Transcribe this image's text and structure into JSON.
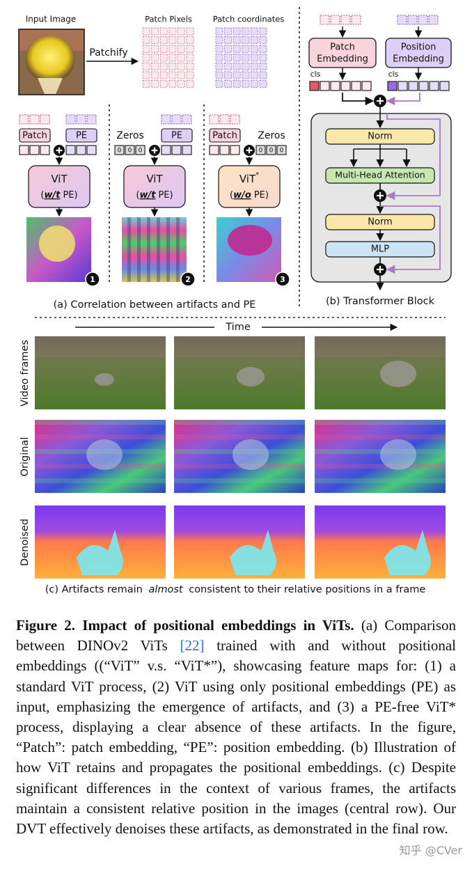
{
  "panel_a": {
    "input_image": "Input Image",
    "patchify": "Patchify",
    "patch_pixels": "Patch Pixels",
    "patch_coordinates": "Patch coordinates",
    "variants": [
      {
        "input_left": "Patch",
        "input_right": "PE",
        "model": "ViT",
        "note_open": "(",
        "note_em": "w/t",
        "note_close": "PE)",
        "badge": "1"
      },
      {
        "input_left": "Zeros",
        "input_right": "PE",
        "zeros": [
          "0",
          "0",
          "0"
        ],
        "model": "ViT",
        "note_open": "(",
        "note_em": "w/t",
        "note_close": "PE)",
        "badge": "2"
      },
      {
        "input_left": "Patch",
        "input_right": "Zeros",
        "zeros": [
          "0",
          "0",
          "0"
        ],
        "model": "ViT",
        "model_sup": "*",
        "note_open": "(",
        "note_em": "w/o",
        "note_close": "PE)",
        "badge": "3"
      }
    ],
    "caption": "(a) Correlation between artifacts and PE"
  },
  "panel_b": {
    "patch_embedding": [
      "Patch",
      "Embedding"
    ],
    "position_embedding": [
      "Position",
      "Embedding"
    ],
    "cls_left": "cls",
    "cls_right": "cls",
    "norm_1": "Norm",
    "attention": "Multi-Head Attention",
    "norm_2": "Norm",
    "mlp": "MLP",
    "caption": "(b) Transformer Block"
  },
  "panel_c": {
    "time": "Time",
    "rows": [
      "Video frames",
      "Original",
      "Denoised"
    ],
    "caption_before": "(c) Artifacts remain",
    "caption_em": "almost",
    "caption_after": "consistent to their relative positions in a frame"
  },
  "caption": {
    "label": "Figure 2.",
    "title": "Impact of positional embeddings in ViTs.",
    "text_1": " (a) Comparison between DINOv2 ViTs ",
    "ref": "[22]",
    "text_2": " trained with and without positional embeddings ((“ViT” v.s. “ViT*”), showcasing feature maps for: (1) a standard ViT process, (2) ViT using only positional embeddings (PE) as input, emphasizing the emergence of artifacts, and (3) a PE-free ViT* process, displaying a clear absence of these artifacts. In the figure, “Patch”: patch embedding, “PE”: position embedding. (b) Illustration of how ViT retains and propagates the positional embeddings. (c) Despite significant differences in the context of various frames, the artifacts maintain a consistent relative position in the images (central row). Our DVT effectively denoises these artifacts, as demonstrated in the final row."
  },
  "watermark": "知乎 @CVer"
}
